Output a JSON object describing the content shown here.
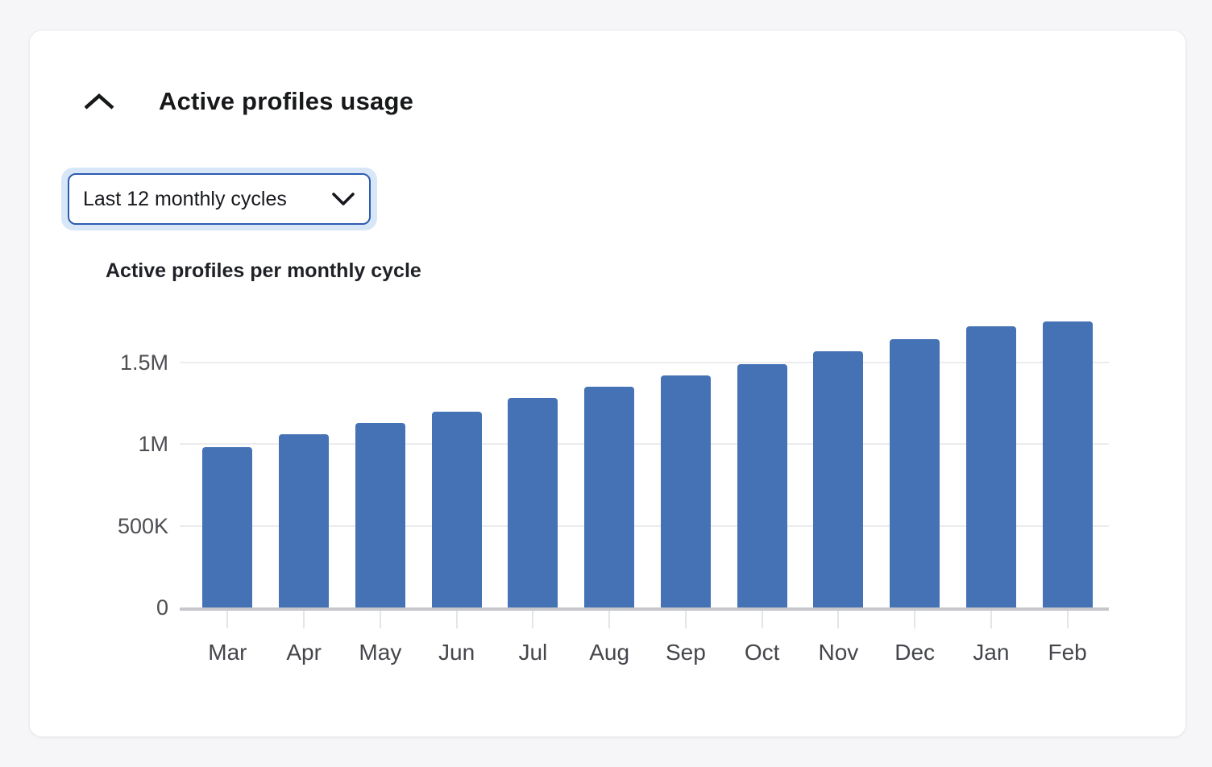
{
  "page": {
    "background_color": "#f6f6f8"
  },
  "card": {
    "title": "Active profiles usage",
    "collapse_icon": "chevron-up-icon"
  },
  "filter_dropdown": {
    "value": "Last 12 monthly cycles",
    "chevron_icon": "chevron-down-icon",
    "border_color": "#2e5cb0",
    "focus_ring_color": "#d8e7f7"
  },
  "chart_data": {
    "type": "bar",
    "title": "Active profiles per monthly cycle",
    "categories": [
      "Mar",
      "Apr",
      "May",
      "Jun",
      "Jul",
      "Aug",
      "Sep",
      "Oct",
      "Nov",
      "Dec",
      "Jan",
      "Feb"
    ],
    "values": [
      980000,
      1060000,
      1130000,
      1200000,
      1280000,
      1350000,
      1420000,
      1490000,
      1570000,
      1640000,
      1720000,
      1750000
    ],
    "series_name": "Active profiles",
    "xlabel": "",
    "ylabel": "",
    "ylim": [
      0,
      1810000
    ],
    "y_ticks": [
      {
        "value": 0,
        "label": "0"
      },
      {
        "value": 500000,
        "label": "500K"
      },
      {
        "value": 1000000,
        "label": "1M"
      },
      {
        "value": 1500000,
        "label": "1.5M"
      }
    ],
    "grid": true,
    "legend": false,
    "bar_color": "#4472b4",
    "axis_color": "#c5c7cb",
    "gridline_color": "#ececee"
  }
}
